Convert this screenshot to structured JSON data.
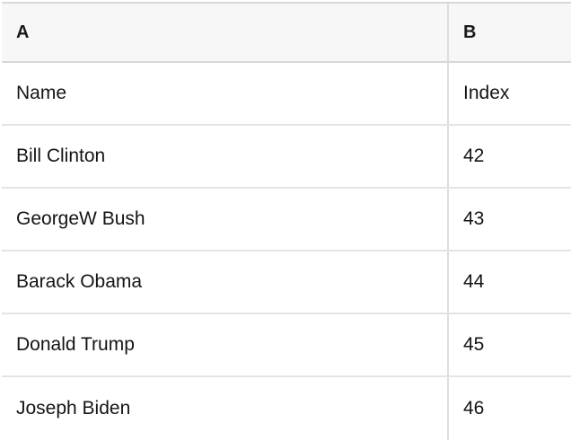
{
  "table": {
    "column_headers": [
      "A",
      "B"
    ],
    "rows": [
      [
        "Name",
        "Index"
      ],
      [
        "Bill Clinton",
        "42"
      ],
      [
        "GeorgeW Bush",
        "43"
      ],
      [
        "Barack Obama",
        "44"
      ],
      [
        "Donald Trump",
        "45"
      ],
      [
        "Joseph Biden",
        "46"
      ]
    ],
    "colors": {
      "background": "#ffffff",
      "header_bg": "#f7f7f7",
      "header_border": "#d8d8d8",
      "row_border": "#e4e4e4",
      "column_border": "#dedede",
      "text": "#141414"
    }
  }
}
